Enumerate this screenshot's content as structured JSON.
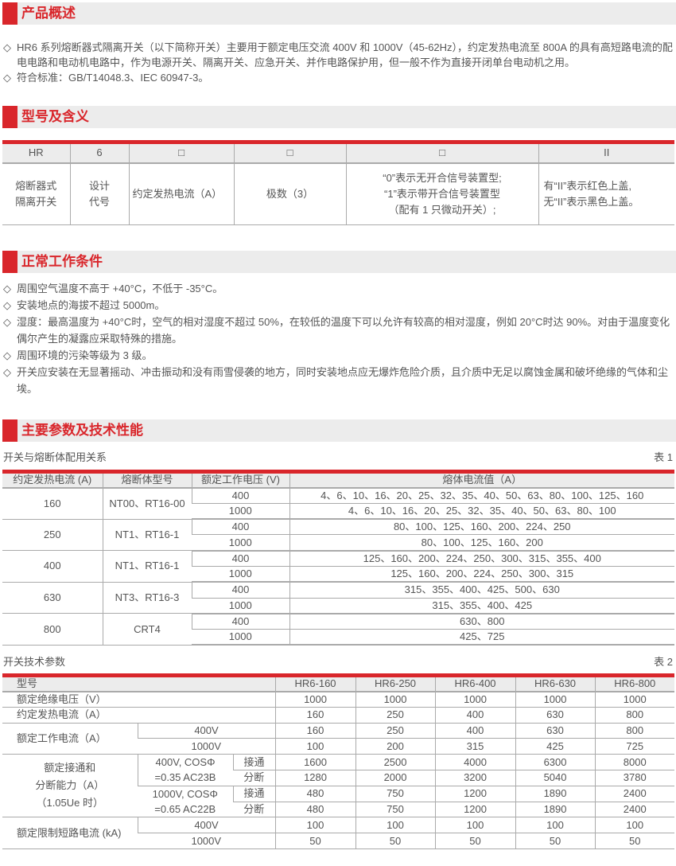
{
  "colors": {
    "accent": "#d9262b",
    "header_bg": "#ececec"
  },
  "bullet_icon": "diamond-outline",
  "sections": {
    "overview": {
      "title": "产品概述",
      "items": [
        "HR6 系列熔断器式隔离开关（以下简称开关）主要用于额定电压交流 400V 和 1000V（45-62Hz），约定发热电流至 800A 的具有高短路电流的配电电路和电动机电路中，作为电源开关、隔离开关、应急开关、并作电路保护用，但一般不作为直接开闭单台电动机之用。",
        "符合标准：GB/T14048.3、IEC 60947-3。"
      ]
    },
    "model": {
      "title": "型号及含义",
      "codes": [
        "HR",
        "6",
        "□",
        "□",
        "□",
        "II"
      ],
      "meanings": [
        [
          "熔断器式",
          "隔离开关"
        ],
        [
          "设计",
          "代号"
        ],
        [
          "约定发热电流（A）"
        ],
        [
          "极数（3）"
        ],
        [
          "“0”表示无开合信号装置型;",
          "“1”表示带开合信号装置型",
          "（配有 1 只微动开关）;"
        ],
        [
          "有“II”表示红色上盖,",
          "无“II”表示黑色上盖。"
        ]
      ]
    },
    "conditions": {
      "title": "正常工作条件",
      "items": [
        "周围空气温度不高于 +40°C，不低于 -35°C。",
        "安装地点的海拔不超过 5000m。",
        "湿度：最高温度为 +40°C时，空气的相对湿度不超过 50%，在较低的温度下可以允许有较高的相对湿度，例如 20°C时达 90%。对由于温度变化偶尔产生的凝露应采取特殊的措施。",
        "周围环境的污染等级为 3 级。",
        "开关应安装在无显著摇动、冲击振动和没有雨雪侵袭的地方，同时安装地点应无爆炸危险介质，且介质中无足以腐蚀金属和破坏绝缘的气体和尘埃。"
      ]
    },
    "params": {
      "title": "主要参数及技术性能"
    }
  },
  "table1": {
    "caption": "开关与熔断体配用关系",
    "label": "表 1",
    "headers": [
      "约定发热电流 (A)",
      "熔断体型号",
      "额定工作电压 (V)",
      "熔体电流值（A）"
    ],
    "rows": [
      {
        "current": "160",
        "fuse": "NT00、RT16-00",
        "entries": [
          {
            "voltage": "400",
            "values": "4、6、10、16、20、25、32、35、40、50、63、80、100、125、160"
          },
          {
            "voltage": "1000",
            "values": "4、6、10、16、20、25、32、35、40、50、63、80、100"
          }
        ]
      },
      {
        "current": "250",
        "fuse": "NT1、RT16-1",
        "entries": [
          {
            "voltage": "400",
            "values": "80、100、125、160、200、224、250"
          },
          {
            "voltage": "1000",
            "values": "80、100、125、160、200"
          }
        ]
      },
      {
        "current": "400",
        "fuse": "NT1、RT16-1",
        "entries": [
          {
            "voltage": "400",
            "values": "125、160、200、224、250、300、315、355、400"
          },
          {
            "voltage": "1000",
            "values": "125、160、200、224、250、300、315"
          }
        ]
      },
      {
        "current": "630",
        "fuse": "NT3、RT16-3",
        "entries": [
          {
            "voltage": "400",
            "values": "315、355、400、425、500、630"
          },
          {
            "voltage": "1000",
            "values": "315、355、400、425"
          }
        ]
      },
      {
        "current": "800",
        "fuse": "CRT4",
        "entries": [
          {
            "voltage": "400",
            "values": "630、800"
          },
          {
            "voltage": "1000",
            "values": "425、725"
          }
        ]
      }
    ]
  },
  "table2": {
    "caption": "开关技术参数",
    "label": "表 2",
    "model_label": "型号",
    "models": [
      "HR6-160",
      "HR6-250",
      "HR6-400",
      "HR6-630",
      "HR6-800"
    ],
    "insulation": {
      "label": "额定绝缘电压（V）",
      "values": [
        "1000",
        "1000",
        "1000",
        "1000",
        "1000"
      ]
    },
    "thermal": {
      "label": "约定发热电流（A）",
      "values": [
        "160",
        "250",
        "400",
        "630",
        "800"
      ]
    },
    "operating": {
      "label": "额定工作电流（A）",
      "sub": [
        {
          "voltage": "400V",
          "values": [
            "160",
            "250",
            "400",
            "630",
            "800"
          ]
        },
        {
          "voltage": "1000V",
          "values": [
            "100",
            "200",
            "315",
            "425",
            "725"
          ]
        }
      ]
    },
    "making_breaking": {
      "label": [
        "额定接通和",
        "分断能力（A）",
        "（1.05Ue 时）"
      ],
      "conditions": [
        {
          "label": [
            "400V, COSΦ",
            "=0.35 AC23B"
          ],
          "ops": [
            {
              "type": "接通",
              "values": [
                "1600",
                "2500",
                "4000",
                "6300",
                "8000"
              ]
            },
            {
              "type": "分断",
              "values": [
                "1280",
                "2000",
                "3200",
                "5040",
                "3780"
              ]
            }
          ]
        },
        {
          "label": [
            "1000V, COSΦ",
            "=0.65 AC22B"
          ],
          "ops": [
            {
              "type": "接通",
              "values": [
                "480",
                "750",
                "1200",
                "1890",
                "2400"
              ]
            },
            {
              "type": "分断",
              "values": [
                "480",
                "750",
                "1200",
                "1890",
                "2400"
              ]
            }
          ]
        }
      ]
    },
    "short_circuit": {
      "label": "额定限制短路电流 (kA)",
      "sub": [
        {
          "voltage": "400V",
          "values": [
            "100",
            "100",
            "100",
            "100",
            "100"
          ]
        },
        {
          "voltage": "1000V",
          "values": [
            "50",
            "50",
            "50",
            "50",
            "50"
          ]
        }
      ]
    }
  }
}
